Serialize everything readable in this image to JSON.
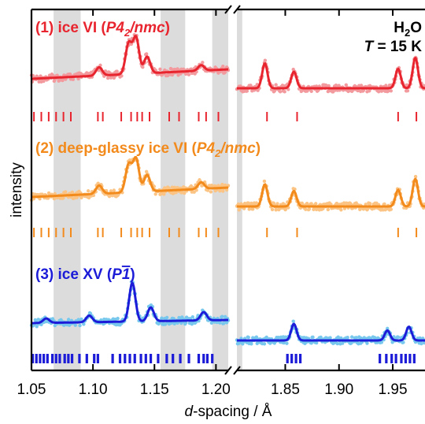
{
  "chart_data": {
    "type": "line",
    "title": "",
    "xlabel_italic": "d",
    "xlabel_rest": "-spacing / Å",
    "ylabel": "intensity",
    "sample_label": {
      "formula": "H",
      "subscript": "2",
      "formula_end": "O",
      "temp_var": "T",
      "temp_rest": " = 15 K"
    },
    "panels": [
      {
        "xlim": [
          1.05,
          1.21
        ],
        "ticks": [
          1.05,
          1.1,
          1.15,
          1.2
        ],
        "tick_labels": [
          "1.05",
          "1.10",
          "1.15",
          "1.20"
        ]
      },
      {
        "xlim": [
          1.805,
          1.98
        ],
        "ticks": [
          1.85,
          1.9,
          1.95
        ],
        "tick_labels": [
          "1.85",
          "1.90",
          "1.95"
        ]
      }
    ],
    "excluded_regions": [
      [
        1.068,
        1.09
      ],
      [
        1.155,
        1.175
      ],
      [
        1.197,
        1.21
      ],
      [
        1.805,
        1.81
      ]
    ],
    "series": [
      {
        "name": "(1) ice VI (P42/nmc)",
        "label_parts": [
          "(1) ice VI (",
          "P4",
          "2",
          "/nmc",
          ")"
        ],
        "color": "#e8252f",
        "data_color": "#f39a9e",
        "peaks_left": [
          [
            1.105,
            0.15
          ],
          [
            1.129,
            0.55
          ],
          [
            1.135,
            0.65
          ],
          [
            1.144,
            0.3
          ],
          [
            1.188,
            0.1
          ]
        ],
        "peaks_right": [
          [
            1.831,
            0.45
          ],
          [
            1.858,
            0.3
          ],
          [
            1.955,
            0.35
          ],
          [
            1.971,
            0.55
          ]
        ],
        "ticks_left": [
          1.052,
          1.058,
          1.064,
          1.07,
          1.076,
          1.082,
          1.104,
          1.108,
          1.123,
          1.131,
          1.136,
          1.14,
          1.146,
          1.162,
          1.17,
          1.186,
          1.192,
          1.202
        ],
        "ticks_right": [
          1.833,
          1.861,
          1.955,
          1.972
        ]
      },
      {
        "name": "(2) deep-glassy ice VI (P42/nmc)",
        "label_parts": [
          "(2) deep-glassy ice VI (",
          "P4",
          "2",
          "/nmc",
          ")"
        ],
        "color": "#f28a1c",
        "data_color": "#fbc484",
        "peaks_left": [
          [
            1.105,
            0.15
          ],
          [
            1.129,
            0.5
          ],
          [
            1.135,
            0.6
          ],
          [
            1.144,
            0.3
          ],
          [
            1.188,
            0.12
          ]
        ],
        "peaks_right": [
          [
            1.831,
            0.4
          ],
          [
            1.858,
            0.28
          ],
          [
            1.955,
            0.3
          ],
          [
            1.971,
            0.5
          ]
        ],
        "ticks_left": [
          1.052,
          1.058,
          1.064,
          1.07,
          1.076,
          1.082,
          1.104,
          1.108,
          1.123,
          1.131,
          1.136,
          1.14,
          1.146,
          1.162,
          1.17,
          1.186,
          1.192,
          1.202
        ],
        "ticks_right": [
          1.833,
          1.861,
          1.955,
          1.972
        ]
      },
      {
        "name": "(3) ice XV (P1̄)",
        "label_parts": [
          "(3) ice XV (",
          "P",
          "1",
          ")"
        ],
        "color": "#1c1cd8",
        "data_color": "#78c8ee",
        "peaks_left": [
          [
            1.062,
            0.08
          ],
          [
            1.097,
            0.12
          ],
          [
            1.132,
            0.7
          ],
          [
            1.147,
            0.25
          ],
          [
            1.19,
            0.15
          ]
        ],
        "peaks_right": [
          [
            1.858,
            0.3
          ],
          [
            1.945,
            0.18
          ],
          [
            1.965,
            0.25
          ]
        ],
        "ticks_left": [
          1.051,
          1.054,
          1.057,
          1.06,
          1.063,
          1.067,
          1.07,
          1.073,
          1.077,
          1.08,
          1.083,
          1.089,
          1.095,
          1.101,
          1.104,
          1.116,
          1.122,
          1.126,
          1.13,
          1.134,
          1.139,
          1.143,
          1.147,
          1.153,
          1.16,
          1.165,
          1.171,
          1.178,
          1.186,
          1.19,
          1.193,
          1.197
        ],
        "ticks_right": [
          1.852,
          1.856,
          1.86,
          1.864,
          1.938,
          1.944,
          1.949,
          1.953,
          1.958,
          1.962,
          1.966,
          1.97
        ]
      }
    ]
  }
}
